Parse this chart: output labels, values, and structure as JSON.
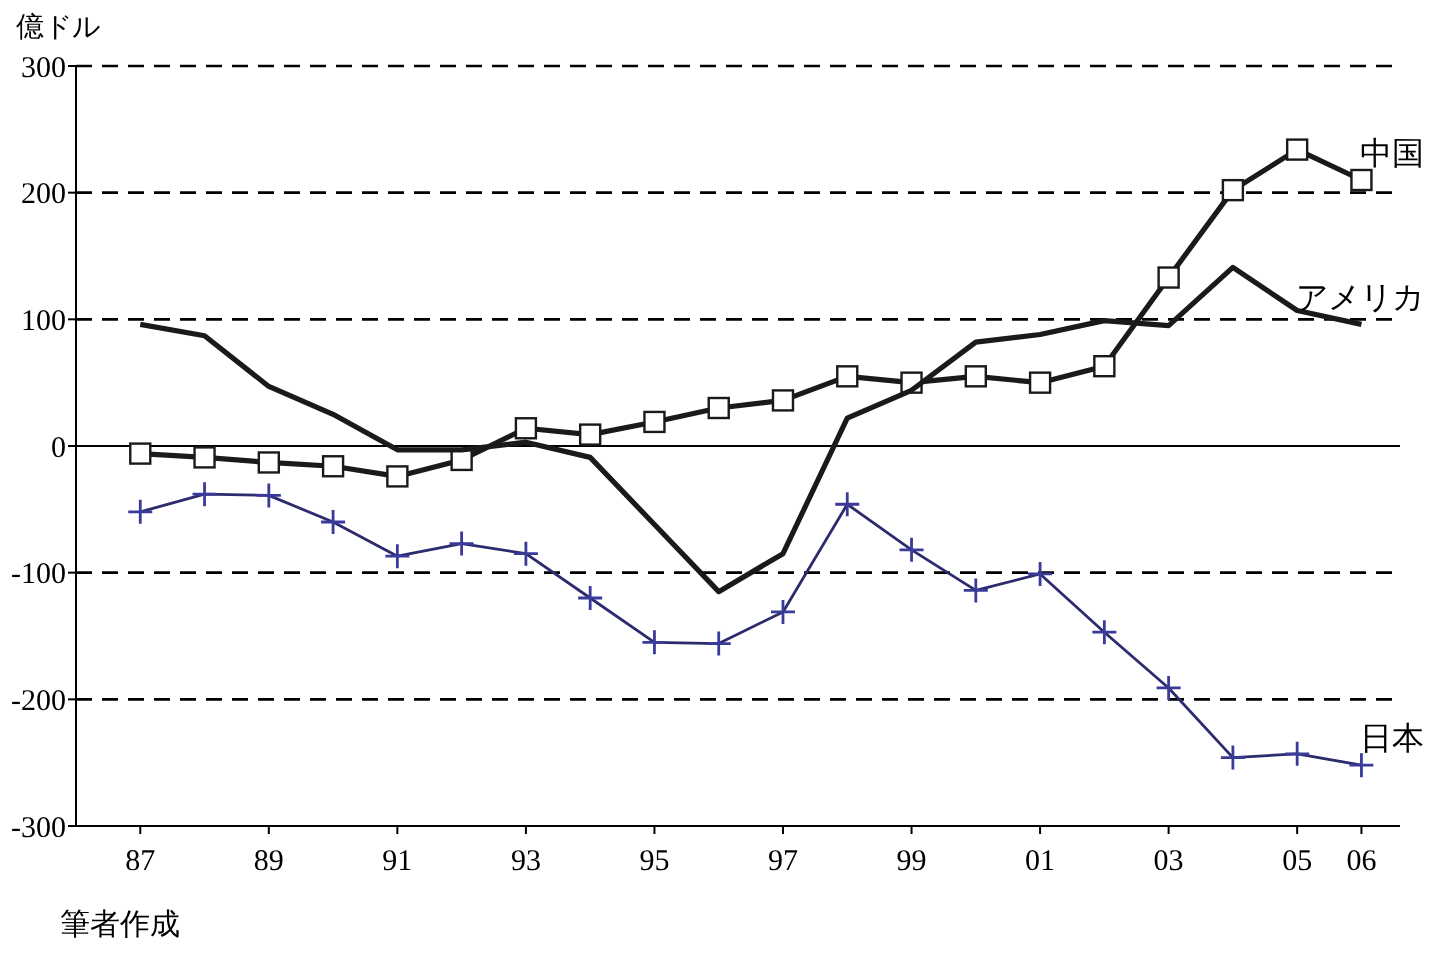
{
  "chart_data": {
    "type": "line",
    "ylabel": "億ドル",
    "x": [
      1987,
      1988,
      1989,
      1990,
      1991,
      1992,
      1993,
      1994,
      1995,
      1996,
      1997,
      1998,
      1999,
      2000,
      2001,
      2002,
      2003,
      2004,
      2005,
      2006
    ],
    "xlim": [
      1986,
      2006.6
    ],
    "xticks": [
      {
        "value": 1987,
        "label": "87"
      },
      {
        "value": 1989,
        "label": "89"
      },
      {
        "value": 1991,
        "label": "91"
      },
      {
        "value": 1993,
        "label": "93"
      },
      {
        "value": 1995,
        "label": "95"
      },
      {
        "value": 1997,
        "label": "97"
      },
      {
        "value": 1999,
        "label": "99"
      },
      {
        "value": 2001,
        "label": "01"
      },
      {
        "value": 2003,
        "label": "03"
      },
      {
        "value": 2005,
        "label": "05"
      },
      {
        "value": 2006,
        "label": "06"
      }
    ],
    "ylim": [
      -300,
      300
    ],
    "yticks": [
      -300,
      -200,
      -100,
      0,
      100,
      200,
      300
    ],
    "grid": "y",
    "ref_lines": [
      {
        "axis": "y",
        "value": 0,
        "line_style": "solid",
        "color": "#000000"
      }
    ],
    "series": [
      {
        "name": "中国",
        "color": "#1a1a1a",
        "marker": "square",
        "values": [
          -6,
          -9,
          -13,
          -16,
          -24,
          -11,
          14,
          9,
          19,
          30,
          36,
          55,
          50,
          55,
          50,
          63,
          133,
          202,
          234,
          210
        ]
      },
      {
        "name": "アメリカ",
        "color": "#1a1a1a",
        "marker": "none",
        "values": [
          96,
          87,
          47,
          25,
          -3,
          -3,
          3,
          -9,
          -62,
          -115,
          -85,
          22,
          44,
          82,
          88,
          99,
          95,
          141,
          107,
          96
        ]
      },
      {
        "name": "日本",
        "color": "#2b2b6e",
        "marker": "cross",
        "values": [
          -52,
          -38,
          -39,
          -60,
          -87,
          -77,
          -85,
          -120,
          -155,
          -156,
          -131,
          -46,
          -82,
          -114,
          -101,
          -147,
          -191,
          -246,
          -243,
          -252
        ]
      }
    ],
    "annotations": [
      "筆者作成"
    ]
  }
}
